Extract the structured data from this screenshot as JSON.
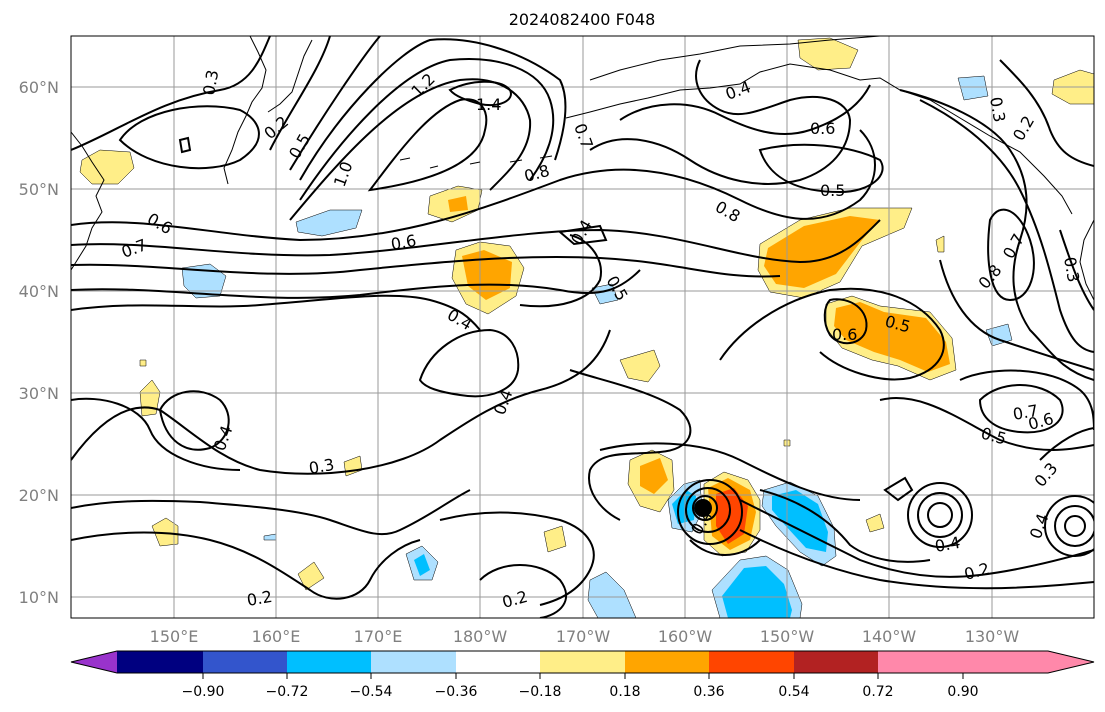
{
  "title": "2024082400 F048",
  "lat_labels": [
    "60°N",
    "50°N",
    "40°N",
    "30°N",
    "20°N",
    "10°N"
  ],
  "lon_labels": [
    "150°E",
    "160°E",
    "170°E",
    "180°W",
    "170°W",
    "160°W",
    "150°W",
    "140°W",
    "130°W"
  ],
  "colorbar": {
    "colors": [
      "#9933cc",
      "#000080",
      "#3355cc",
      "#00bfff",
      "#aee0ff",
      "#ffffff",
      "#ffee88",
      "#ffa500",
      "#ff4500",
      "#b22222",
      "#ff88aa"
    ],
    "labels": [
      "−0.90",
      "−0.72",
      "−0.54",
      "−0.36",
      "−0.18",
      "0.18",
      "0.36",
      "0.54",
      "0.72",
      "0.90"
    ]
  },
  "contour_labels": [
    "0.3",
    "0.2",
    "0.5",
    "1.0",
    "1.2",
    "1.4",
    "0.7",
    "0.8",
    "0.6",
    "0.4",
    "0.5",
    "0.4",
    "0.6",
    "0.5",
    "0.8",
    "0.6",
    "0.5",
    "0.8",
    "0.7",
    "0.4",
    "0.6",
    "0.7",
    "0.3",
    "0.2",
    "0.3",
    "0.5",
    "0.6",
    "0.7",
    "0.3",
    "0.4",
    "0.4",
    "0.3",
    "0.4",
    "0.2",
    "0.2",
    "0.2",
    "0.4",
    "0.4"
  ]
}
